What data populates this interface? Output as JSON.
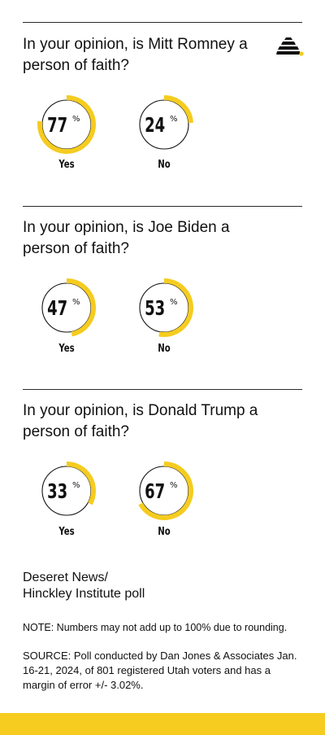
{
  "colors": {
    "accent": "#f5cc1f",
    "text": "#111111",
    "rule": "#2b2b2b"
  },
  "logo": {
    "icon": "beehive-icon"
  },
  "source_title": [
    "Deseret News/",
    "Hinckley Institute poll"
  ],
  "note": "NOTE: Numbers may not add up to 100% due to rounding.",
  "source": "SOURCE: Poll conducted by Dan Jones & Associates Jan. 16-21, 2024, of 801 registered Utah voters and has a margin of error +/- 3.02%.",
  "chart_data": [
    {
      "type": "pie",
      "title": "In your opinion, is Mitt Romney a person of faith?",
      "categories": [
        "Yes",
        "No"
      ],
      "values": [
        77,
        24
      ],
      "unit": "%"
    },
    {
      "type": "pie",
      "title": "In your opinion, is Joe Biden a person of faith?",
      "categories": [
        "Yes",
        "No"
      ],
      "values": [
        47,
        53
      ],
      "unit": "%"
    },
    {
      "type": "pie",
      "title": "In your opinion, is Donald Trump a person of faith?",
      "categories": [
        "Yes",
        "No"
      ],
      "values": [
        33,
        67
      ],
      "unit": "%"
    }
  ]
}
